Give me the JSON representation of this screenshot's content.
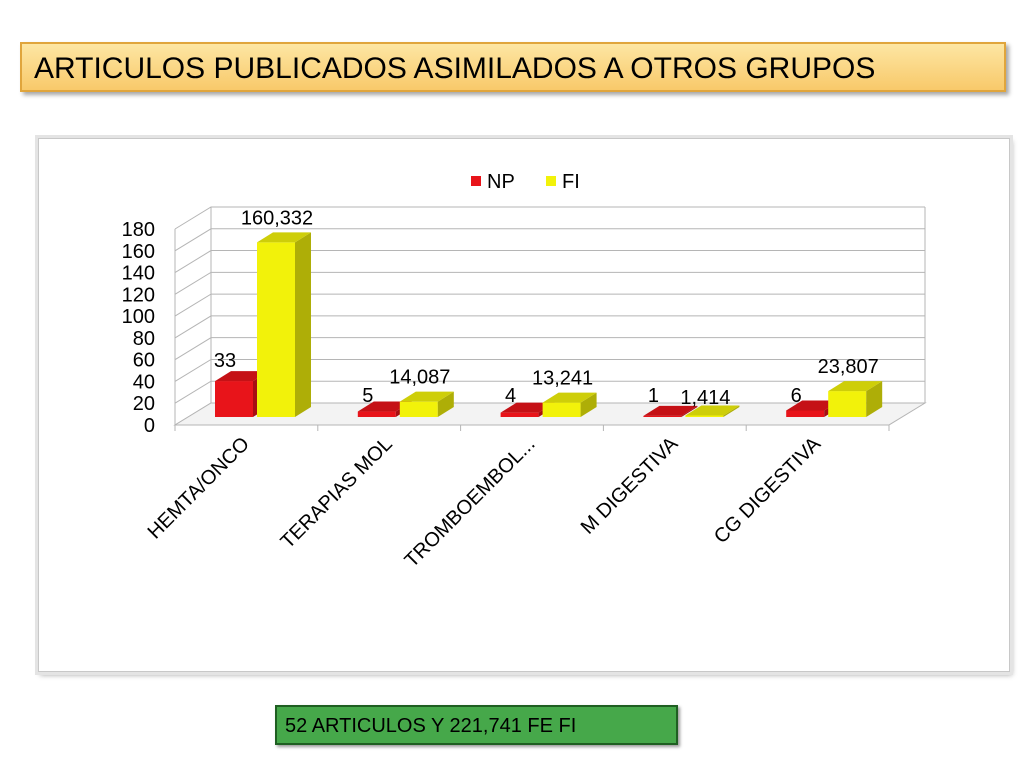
{
  "title": "ARTICULOS PUBLICADOS ASIMILADOS A OTROS GRUPOS",
  "summary": "52 ARTICULOS  Y 221,741 FE FI",
  "colors": {
    "np": "#e8141a",
    "fi": "#f2f20a"
  },
  "chart_data": {
    "type": "bar",
    "categories": [
      "HEMTA/ONCO",
      "TERAPIAS MOL",
      "TROMBOEMBOL...",
      "M DIGESTIVA",
      "CG DIGESTIVA"
    ],
    "series": [
      {
        "name": "NP",
        "values": [
          33,
          5,
          4,
          1,
          6
        ],
        "labels": [
          "33",
          "5",
          "4",
          "1",
          "6"
        ]
      },
      {
        "name": "FI",
        "values": [
          160.332,
          14.087,
          13.241,
          1.414,
          23.807
        ],
        "labels": [
          "160,332",
          "14,087",
          "13,241",
          "1,414",
          "23,807"
        ]
      }
    ],
    "yticks": [
      "0",
      "20",
      "40",
      "60",
      "80",
      "100",
      "120",
      "140",
      "160",
      "180"
    ],
    "ylim": [
      0,
      180
    ],
    "grid": true,
    "legend": "top",
    "style": "3d-column"
  }
}
